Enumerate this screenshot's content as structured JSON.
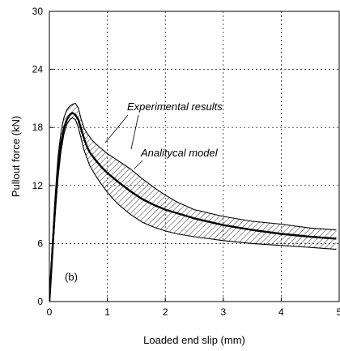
{
  "chart_data": {
    "type": "line",
    "title": "",
    "xlabel": "Loaded end slip (mm)",
    "ylabel": "Pullout force (kN)",
    "xlim": [
      0,
      5
    ],
    "ylim": [
      0,
      30
    ],
    "xticks": [
      0,
      1,
      2,
      3,
      4,
      5
    ],
    "yticks": [
      0,
      6,
      12,
      18,
      24,
      30
    ],
    "grid": true,
    "panel_label": "(b)",
    "annotations": [
      "Experimental results",
      "Analitycal model"
    ],
    "series": [
      {
        "name": "Analitycal model",
        "x": [
          0,
          0.05,
          0.1,
          0.15,
          0.2,
          0.25,
          0.3,
          0.35,
          0.4,
          0.45,
          0.5,
          0.55,
          0.6,
          0.65,
          0.7,
          0.8,
          0.9,
          1.0,
          1.2,
          1.4,
          1.6,
          1.8,
          2.0,
          2.5,
          3.0,
          3.5,
          4.0,
          4.5,
          4.95
        ],
        "y": [
          0,
          5.0,
          10.0,
          13.8,
          16.3,
          17.9,
          18.8,
          19.3,
          19.5,
          19.3,
          18.8,
          17.8,
          16.8,
          16.0,
          15.4,
          14.6,
          13.9,
          13.3,
          12.3,
          11.4,
          10.6,
          10.0,
          9.5,
          8.6,
          7.9,
          7.4,
          7.0,
          6.7,
          6.5
        ]
      },
      {
        "name": "Experimental results (upper bound)",
        "x": [
          0,
          0.05,
          0.1,
          0.15,
          0.2,
          0.25,
          0.3,
          0.35,
          0.4,
          0.45,
          0.5,
          0.55,
          0.6,
          0.65,
          0.7,
          0.75,
          0.8,
          0.9,
          1.0,
          1.2,
          1.4,
          1.6,
          1.8,
          2.0,
          2.2,
          2.5,
          3.0,
          3.5,
          4.0,
          4.5,
          4.95
        ],
        "y": [
          0,
          6.0,
          11.0,
          15.0,
          17.5,
          19.0,
          19.8,
          20.2,
          20.4,
          20.5,
          20.0,
          18.8,
          17.9,
          17.4,
          17.0,
          16.6,
          16.3,
          15.8,
          15.3,
          14.5,
          13.7,
          12.7,
          11.8,
          11.0,
          10.3,
          9.5,
          8.8,
          8.3,
          8.0,
          7.6,
          7.4
        ]
      },
      {
        "name": "Experimental results (lower bound)",
        "x": [
          0,
          0.05,
          0.1,
          0.15,
          0.2,
          0.25,
          0.3,
          0.35,
          0.4,
          0.45,
          0.5,
          0.55,
          0.6,
          0.7,
          0.8,
          0.9,
          1.0,
          1.1,
          1.2,
          1.4,
          1.6,
          1.8,
          2.0,
          2.2,
          2.5,
          3.0,
          3.5,
          4.0,
          4.5,
          4.95
        ],
        "y": [
          0,
          4.5,
          9.0,
          12.8,
          15.5,
          17.3,
          18.3,
          18.8,
          19.0,
          18.8,
          18.0,
          16.8,
          15.6,
          14.0,
          13.0,
          12.1,
          11.3,
          10.6,
          10.0,
          9.0,
          8.2,
          7.7,
          7.3,
          7.0,
          6.7,
          6.3,
          6.0,
          5.8,
          5.6,
          5.4
        ]
      }
    ]
  }
}
